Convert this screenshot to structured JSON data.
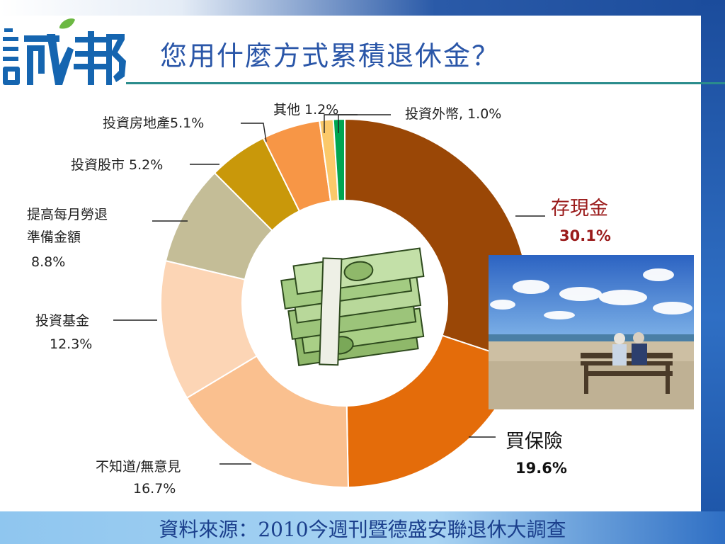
{
  "title": "您用什麼方式累積退休金？",
  "source": "資料來源：2010今週刊暨德盛安聯退休大調查",
  "logo": {
    "text": "誠邦",
    "colors": {
      "blue": "#1565b0",
      "green": "#6cb843"
    }
  },
  "chart_data": {
    "type": "pie",
    "donut": true,
    "title": "您用什麼方式累積退休金？",
    "slices": [
      {
        "name": "存現金",
        "label": "存現金",
        "value": 30.1,
        "pct_label": "30.1%",
        "color": "#9a4706"
      },
      {
        "name": "買保險",
        "label": "買保險",
        "value": 19.6,
        "pct_label": "19.6%",
        "color": "#e46c0a"
      },
      {
        "name": "不知道/無意見",
        "label": "不知道/無意見",
        "value": 16.7,
        "pct_label": "16.7%",
        "color": "#fac08f"
      },
      {
        "name": "投資基金",
        "label": "投資基金",
        "value": 12.3,
        "pct_label": "12.3%",
        "color": "#fcd5b5"
      },
      {
        "name": "提高每月勞退準備金額",
        "label_lines": [
          "提高每月勞退",
          "準備金額"
        ],
        "value": 8.8,
        "pct_label": "8.8%",
        "color": "#c4bd97"
      },
      {
        "name": "投資股市",
        "label": "投資股市 5.2%",
        "value": 5.2,
        "color": "#c9980a"
      },
      {
        "name": "投資房地產",
        "label": "投資房地產5.1%",
        "value": 5.1,
        "color": "#f79646"
      },
      {
        "name": "其他",
        "label": "其他 1.2%",
        "value": 1.2,
        "color": "#fbc96a"
      },
      {
        "name": "投資外幣",
        "label": "投資外幣, 1.0%",
        "value": 1.0,
        "color": "#00a651"
      }
    ],
    "label_colors": {
      "cash": "#9a1a1a",
      "default": "#222222"
    },
    "legend": "none"
  },
  "center_icon": "money-stack-icon",
  "photo": "elderly-couple-on-beach-bench"
}
